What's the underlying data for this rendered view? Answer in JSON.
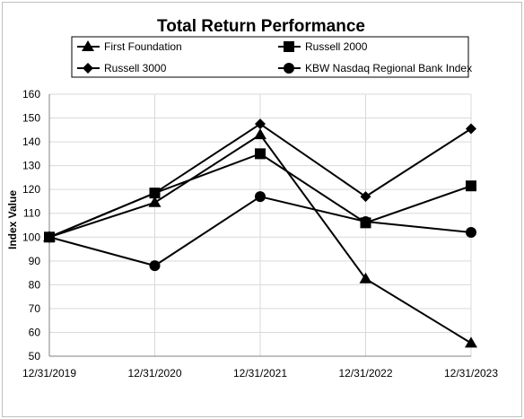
{
  "chart_data": {
    "type": "line",
    "title": "Total Return Performance",
    "xlabel": "",
    "ylabel": "Index Value",
    "x": [
      "12/31/2019",
      "12/31/2020",
      "12/31/2021",
      "12/31/2022",
      "12/31/2023"
    ],
    "ylim": [
      50,
      160
    ],
    "yticks": [
      50,
      60,
      70,
      80,
      90,
      100,
      110,
      120,
      130,
      140,
      150,
      160
    ],
    "grid": true,
    "legend_position": "top",
    "series": [
      {
        "name": "First Foundation",
        "marker": "triangle",
        "values": [
          100,
          114.5,
          143,
          82.5,
          55.5
        ]
      },
      {
        "name": "Russell 2000",
        "marker": "square",
        "values": [
          100,
          118.5,
          135,
          106,
          121.5
        ]
      },
      {
        "name": "Russell 3000",
        "marker": "diamond",
        "values": [
          100,
          118.5,
          147.5,
          117,
          145.5
        ]
      },
      {
        "name": "KBW Nasdaq Regional Bank Index",
        "marker": "circle",
        "values": [
          100,
          88,
          117,
          106.5,
          102
        ]
      }
    ],
    "colors": {
      "line": "#000000",
      "grid": "#d9d9d9",
      "axis": "#808080"
    }
  }
}
